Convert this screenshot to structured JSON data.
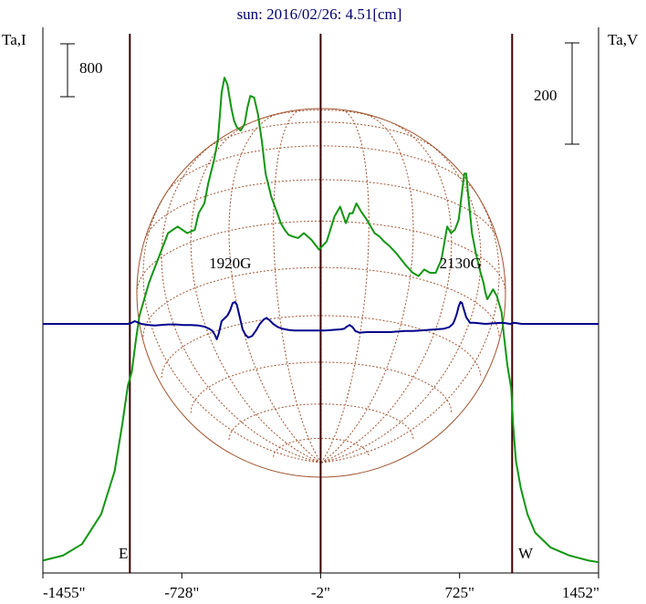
{
  "chart_data": {
    "type": "line",
    "title": "sun: 2016/02/26: 4.51[cm]",
    "left_axis_label": "Ta,I",
    "right_axis_label": "Ta,V",
    "scale_bars": {
      "left": "800",
      "right": "200"
    },
    "x_tick_labels": [
      "-1455\"",
      "-728\"",
      "-2\"",
      "725\"",
      "1452\""
    ],
    "x_ticks": [
      -1455,
      -728,
      -2,
      725,
      1452
    ],
    "xlim": [
      -1455,
      1452
    ],
    "vertical_lines": [
      -1000,
      -2,
      1000
    ],
    "limb_labels": {
      "east": "E",
      "west": "W"
    },
    "annotations": [
      {
        "text": "1920G",
        "x": -475
      },
      {
        "text": "2130G",
        "x": 730
      }
    ],
    "grid": false,
    "colors": {
      "intensity": "#119611",
      "polarization": "#00008c",
      "disk": "#a0522d",
      "frame": "#000000",
      "title": "#00006e",
      "limb_lines": "#3a0000"
    },
    "series": [
      {
        "name": "Ta,I",
        "color": "#119611",
        "x": [
          -1455,
          -1350,
          -1250,
          -1150,
          -1080,
          -1040,
          -1010,
          -990,
          -970,
          -950,
          -900,
          -860,
          -800,
          -750,
          -700,
          -660,
          -640,
          -610,
          -590,
          -560,
          -540,
          -530,
          -520,
          -505,
          -490,
          -470,
          -455,
          -440,
          -420,
          -400,
          -385,
          -370,
          -350,
          -330,
          -310,
          -290,
          -260,
          -235,
          -210,
          -190,
          -170,
          -150,
          -120,
          -90,
          -50,
          -10,
          30,
          70,
          100,
          130,
          150,
          165,
          185,
          210,
          235,
          260,
          280,
          305,
          330,
          360,
          400,
          440,
          480,
          510,
          540,
          570,
          600,
          630,
          660,
          680,
          700,
          720,
          740,
          750,
          760,
          770,
          790,
          810,
          830,
          850,
          860,
          870,
          880,
          900,
          920,
          945,
          955,
          975,
          995,
          1005,
          1020,
          1045,
          1080,
          1120,
          1200,
          1300,
          1400,
          1452
        ],
        "y": [
          10,
          25,
          60,
          150,
          280,
          420,
          540,
          580,
          670,
          750,
          850,
          910,
          1000,
          1020,
          1000,
          1010,
          1060,
          1090,
          1150,
          1220,
          1280,
          1350,
          1425,
          1470,
          1450,
          1380,
          1340,
          1320,
          1310,
          1330,
          1380,
          1415,
          1410,
          1360,
          1280,
          1180,
          1110,
          1070,
          1030,
          1010,
          995,
          990,
          985,
          1000,
          980,
          950,
          975,
          1050,
          1080,
          1030,
          1060,
          1060,
          1090,
          1065,
          1045,
          1020,
          1000,
          990,
          975,
          960,
          935,
          905,
          880,
          870,
          890,
          880,
          880,
          920,
          1020,
          1000,
          1010,
          1040,
          1135,
          1180,
          1180,
          1115,
          1000,
          940,
          890,
          850,
          820,
          800,
          810,
          830,
          810,
          760,
          700,
          600,
          530,
          420,
          310,
          230,
          150,
          95,
          50,
          25,
          10,
          5
        ]
      },
      {
        "name": "Ta,V",
        "color": "#00008c",
        "x": [
          -1455,
          -1300,
          -1150,
          -1050,
          -1010,
          -990,
          -975,
          -960,
          -940,
          -920,
          -900,
          -870,
          -840,
          -800,
          -760,
          -720,
          -680,
          -640,
          -610,
          -590,
          -570,
          -555,
          -545,
          -535,
          -520,
          -505,
          -490,
          -475,
          -462,
          -450,
          -440,
          -430,
          -420,
          -410,
          -395,
          -380,
          -360,
          -340,
          -320,
          -300,
          -285,
          -270,
          -250,
          -225,
          -200,
          -170,
          -140,
          -100,
          -60,
          -20,
          20,
          60,
          100,
          120,
          135,
          150,
          165,
          180,
          200,
          240,
          280,
          320,
          360,
          400,
          440,
          480,
          520,
          560,
          600,
          640,
          670,
          690,
          700,
          710,
          720,
          730,
          738,
          746,
          760,
          780,
          800,
          830,
          860,
          900,
          950,
          990,
          1010,
          1030,
          1050,
          1070,
          1100,
          1150,
          1250,
          1350,
          1452
        ],
        "y": [
          0,
          0,
          0,
          0,
          0,
          2,
          5,
          3,
          0,
          -1,
          -2,
          -3,
          -2,
          -1,
          -1,
          -2,
          -2,
          -3,
          -5,
          -8,
          -12,
          -20,
          -28,
          -18,
          5,
          10,
          15,
          25,
          38,
          40,
          35,
          20,
          5,
          -10,
          -20,
          -25,
          -22,
          -12,
          0,
          8,
          11,
          7,
          0,
          -6,
          -9,
          -11,
          -12,
          -12,
          -12,
          -12,
          -12,
          -11,
          -10,
          -9,
          -5,
          -2,
          -6,
          -13,
          -16,
          -15,
          -15,
          -15,
          -15,
          -14,
          -13,
          -13,
          -12,
          -11,
          -10,
          -9,
          -6,
          0,
          8,
          18,
          32,
          40,
          38,
          28,
          12,
          2,
          2,
          1,
          0,
          1,
          2,
          0,
          2,
          1,
          0,
          0,
          0,
          0,
          0,
          0,
          0
        ]
      }
    ]
  }
}
